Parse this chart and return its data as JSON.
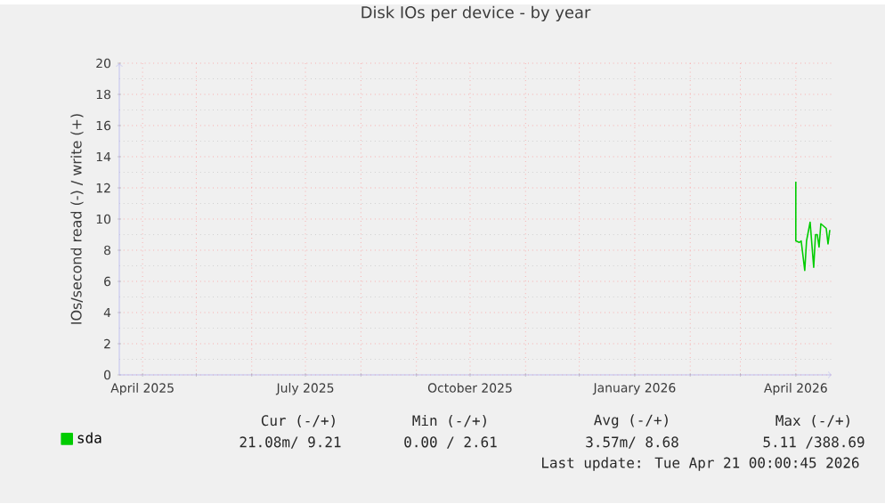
{
  "chart_data": {
    "type": "line",
    "title": "Disk IOs per device - by year",
    "ylabel": "IOs/second read (-) / write (+)",
    "xlim": [
      "2025-03-19",
      "2026-04-21"
    ],
    "xticks": [
      {
        "value": "2025-04-01",
        "label": "April 2025"
      },
      {
        "value": "2025-05-01",
        "label": null
      },
      {
        "value": "2025-06-01",
        "label": null
      },
      {
        "value": "2025-07-01",
        "label": "July 2025"
      },
      {
        "value": "2025-08-01",
        "label": null
      },
      {
        "value": "2025-09-01",
        "label": null
      },
      {
        "value": "2025-10-01",
        "label": "October 2025"
      },
      {
        "value": "2025-11-01",
        "label": null
      },
      {
        "value": "2025-12-01",
        "label": null
      },
      {
        "value": "2026-01-01",
        "label": "January 2026"
      },
      {
        "value": "2026-02-01",
        "label": null
      },
      {
        "value": "2026-03-01",
        "label": null
      },
      {
        "value": "2026-04-01",
        "label": "April 2026"
      }
    ],
    "ylim": [
      0,
      20
    ],
    "yticks": [
      0,
      2,
      4,
      6,
      8,
      10,
      12,
      14,
      16,
      18,
      20
    ],
    "grid": true,
    "legend": "bottom left",
    "x": [
      "2026-04-01",
      "2026-04-01",
      "2026-04-03",
      "2026-04-04",
      "2026-04-06",
      "2026-04-07",
      "2026-04-09",
      "2026-04-11",
      "2026-04-12",
      "2026-04-13",
      "2026-04-14",
      "2026-04-15",
      "2026-04-17",
      "2026-04-18",
      "2026-04-19",
      "2026-04-20"
    ],
    "series": [
      {
        "name": "sda",
        "color": "#00cc00",
        "values": [
          12.4,
          8.6,
          8.5,
          8.6,
          6.7,
          8.6,
          9.8,
          6.9,
          9.0,
          9.0,
          8.2,
          9.7,
          9.5,
          9.4,
          8.4,
          9.3
        ]
      }
    ],
    "annotations": [
      "Cur (-/+)",
      "Min (-/+)",
      "Avg (-/+)",
      "Max (-/+)",
      "21.08m/  9.21",
      "0.00 /  2.61",
      "3.57m/  8.68",
      "5.11 /388.69",
      "Last update: Tue Apr 21 00:00:45 2026"
    ]
  }
}
